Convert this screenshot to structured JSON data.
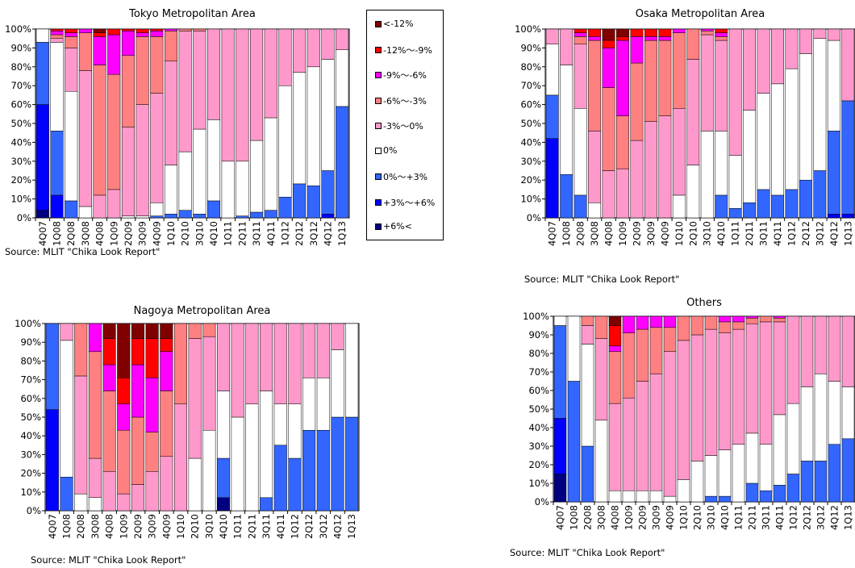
{
  "colors": {
    "lt_m12": "#800000",
    "m12_m9": "#ff0000",
    "m9_m6": "#ff00ff",
    "m6_m3": "#ff8080",
    "m3_0": "#ff99cc",
    "zero": "#ffffff",
    "p0_p3": "#3366ff",
    "p3_p6": "#0000ff",
    "gt_p6": "#000080"
  },
  "legend": [
    {
      "key": "lt_m12",
      "label": "<-12%"
    },
    {
      "key": "m12_m9",
      "label": "-12%〜-9%"
    },
    {
      "key": "m9_m6",
      "label": "-9%〜-6%"
    },
    {
      "key": "m6_m3",
      "label": "-6%〜-3%"
    },
    {
      "key": "m3_0",
      "label": "-3%〜0%"
    },
    {
      "key": "zero",
      "label": "0%"
    },
    {
      "key": "p0_p3",
      "label": "0%〜+3%"
    },
    {
      "key": "p3_p6",
      "label": "+3%〜+6%"
    },
    {
      "key": "gt_p6",
      "label": "+6%<"
    }
  ],
  "source_text": "Source: MLIT \"Chika Look Report\"",
  "chart_data": [
    {
      "type": "bar",
      "stacked": "percent",
      "title": "Tokyo Metropolitan Area",
      "categories": [
        "4Q07",
        "1Q08",
        "2Q08",
        "3Q08",
        "4Q08",
        "1Q09",
        "2Q09",
        "3Q09",
        "4Q09",
        "1Q10",
        "2Q10",
        "3Q10",
        "4Q10",
        "1Q11",
        "2Q11",
        "3Q11",
        "4Q11",
        "1Q12",
        "2Q12",
        "3Q12",
        "4Q12",
        "1Q13"
      ],
      "yticks": [
        "0%",
        "10%",
        "20%",
        "30%",
        "40%",
        "50%",
        "60%",
        "70%",
        "80%",
        "90%",
        "100%"
      ],
      "ylim": [
        0,
        100
      ],
      "grid": false,
      "series_order": [
        "gt_p6",
        "p3_p6",
        "p0_p3",
        "zero",
        "m3_0",
        "m6_m3",
        "m9_m6",
        "m12_m9",
        "lt_m12"
      ],
      "values": [
        [
          4,
          56,
          33,
          7,
          0,
          0,
          0,
          0,
          0
        ],
        [
          0,
          12,
          34,
          47,
          2,
          2,
          2,
          1,
          0
        ],
        [
          0,
          0,
          9,
          58,
          23,
          6,
          2,
          2,
          0
        ],
        [
          0,
          0,
          0,
          6,
          72,
          20,
          2,
          0,
          0
        ],
        [
          0,
          0,
          0,
          0,
          12,
          69,
          15,
          2,
          2
        ],
        [
          0,
          0,
          0,
          0,
          15,
          61,
          21,
          3,
          0
        ],
        [
          0,
          0,
          0,
          1,
          47,
          38,
          13,
          1,
          0
        ],
        [
          0,
          0,
          0,
          1,
          59,
          36,
          2,
          2,
          0
        ],
        [
          0,
          0,
          1,
          7,
          58,
          30,
          3,
          1,
          0
        ],
        [
          0,
          0,
          2,
          26,
          55,
          16,
          1,
          0,
          0
        ],
        [
          0,
          0,
          4,
          31,
          64,
          1,
          0,
          0,
          0
        ],
        [
          0,
          0,
          2,
          45,
          52,
          1,
          0,
          0,
          0
        ],
        [
          0,
          0,
          9,
          43,
          48,
          0,
          0,
          0,
          0
        ],
        [
          0,
          0,
          0,
          30,
          70,
          0,
          0,
          0,
          0
        ],
        [
          0,
          0,
          1,
          29,
          70,
          0,
          0,
          0,
          0
        ],
        [
          0,
          0,
          3,
          38,
          59,
          0,
          0,
          0,
          0
        ],
        [
          0,
          0,
          4,
          49,
          47,
          0,
          0,
          0,
          0
        ],
        [
          0,
          0,
          11,
          59,
          30,
          0,
          0,
          0,
          0
        ],
        [
          0,
          0,
          18,
          59,
          23,
          0,
          0,
          0,
          0
        ],
        [
          0,
          0,
          17,
          63,
          20,
          0,
          0,
          0,
          0
        ],
        [
          0,
          2,
          23,
          59,
          16,
          0,
          0,
          0,
          0
        ],
        [
          0,
          0,
          59,
          30,
          11,
          0,
          0,
          0,
          0
        ]
      ]
    },
    {
      "type": "bar",
      "stacked": "percent",
      "title": "Osaka Metropolitan Area",
      "categories": [
        "4Q07",
        "1Q08",
        "2Q08",
        "3Q08",
        "4Q08",
        "1Q09",
        "2Q09",
        "3Q09",
        "4Q09",
        "1Q10",
        "2Q10",
        "3Q10",
        "4Q10",
        "1Q11",
        "2Q11",
        "3Q11",
        "4Q11",
        "1Q12",
        "2Q12",
        "3Q12",
        "4Q12",
        "1Q13"
      ],
      "yticks": [
        "0%",
        "10%",
        "20%",
        "30%",
        "40%",
        "50%",
        "60%",
        "70%",
        "80%",
        "90%",
        "100%"
      ],
      "ylim": [
        0,
        100
      ],
      "grid": false,
      "series_order": [
        "gt_p6",
        "p3_p6",
        "p0_p3",
        "zero",
        "m3_0",
        "m6_m3",
        "m9_m6",
        "m12_m9",
        "lt_m12"
      ],
      "values": [
        [
          0,
          42,
          23,
          27,
          8,
          0,
          0,
          0,
          0
        ],
        [
          0,
          0,
          23,
          58,
          19,
          0,
          0,
          0,
          0
        ],
        [
          0,
          0,
          12,
          46,
          34,
          4,
          2,
          2,
          0
        ],
        [
          0,
          0,
          0,
          8,
          38,
          48,
          2,
          4,
          0
        ],
        [
          0,
          0,
          0,
          0,
          25,
          44,
          21,
          4,
          6
        ],
        [
          0,
          0,
          0,
          0,
          26,
          28,
          40,
          2,
          4
        ],
        [
          0,
          0,
          0,
          0,
          41,
          41,
          14,
          4,
          0
        ],
        [
          0,
          0,
          0,
          0,
          51,
          43,
          2,
          4,
          0
        ],
        [
          0,
          0,
          0,
          0,
          54,
          40,
          2,
          4,
          0
        ],
        [
          0,
          0,
          0,
          12,
          46,
          40,
          2,
          0,
          0
        ],
        [
          0,
          0,
          0,
          28,
          56,
          16,
          0,
          0,
          0
        ],
        [
          0,
          0,
          0,
          46,
          51,
          2,
          1,
          0,
          0
        ],
        [
          0,
          0,
          12,
          34,
          48,
          2,
          2,
          2,
          0
        ],
        [
          0,
          0,
          5,
          28,
          67,
          0,
          0,
          0,
          0
        ],
        [
          0,
          0,
          8,
          49,
          43,
          0,
          0,
          0,
          0
        ],
        [
          0,
          0,
          15,
          51,
          34,
          0,
          0,
          0,
          0
        ],
        [
          0,
          0,
          12,
          59,
          29,
          0,
          0,
          0,
          0
        ],
        [
          0,
          0,
          15,
          64,
          21,
          0,
          0,
          0,
          0
        ],
        [
          0,
          0,
          20,
          67,
          13,
          0,
          0,
          0,
          0
        ],
        [
          0,
          0,
          25,
          70,
          5,
          0,
          0,
          0,
          0
        ],
        [
          0,
          2,
          44,
          48,
          6,
          0,
          0,
          0,
          0
        ],
        [
          0,
          2,
          60,
          0,
          38,
          0,
          0,
          0,
          0
        ]
      ]
    },
    {
      "type": "bar",
      "stacked": "percent",
      "title": "Nagoya Metropolitan Area",
      "categories": [
        "4Q07",
        "1Q08",
        "2Q08",
        "3Q08",
        "4Q08",
        "1Q09",
        "2Q09",
        "3Q09",
        "4Q09",
        "1Q10",
        "2Q10",
        "3Q10",
        "4Q10",
        "1Q11",
        "2Q11",
        "3Q11",
        "4Q11",
        "1Q12",
        "2Q12",
        "3Q12",
        "4Q12",
        "1Q13"
      ],
      "yticks": [
        "0%",
        "10%",
        "20%",
        "30%",
        "40%",
        "50%",
        "60%",
        "70%",
        "80%",
        "90%",
        "100%"
      ],
      "ylim": [
        0,
        100
      ],
      "grid": false,
      "series_order": [
        "gt_p6",
        "p3_p6",
        "p0_p3",
        "zero",
        "m3_0",
        "m6_m3",
        "m9_m6",
        "m12_m9",
        "lt_m12"
      ],
      "values": [
        [
          0,
          54,
          46,
          0,
          0,
          0,
          0,
          0,
          0
        ],
        [
          0,
          0,
          18,
          73,
          9,
          0,
          0,
          0,
          0
        ],
        [
          0,
          0,
          0,
          9,
          63,
          28,
          0,
          0,
          0
        ],
        [
          0,
          0,
          0,
          7,
          21,
          57,
          15,
          0,
          0
        ],
        [
          0,
          0,
          0,
          0,
          21,
          43,
          14,
          14,
          8
        ],
        [
          0,
          0,
          0,
          0,
          9,
          34,
          14,
          14,
          29
        ],
        [
          0,
          0,
          0,
          0,
          14,
          36,
          28,
          14,
          8
        ],
        [
          0,
          0,
          0,
          0,
          21,
          21,
          29,
          21,
          8
        ],
        [
          0,
          0,
          0,
          0,
          29,
          35,
          21,
          7,
          8
        ],
        [
          0,
          0,
          0,
          0,
          57,
          43,
          0,
          0,
          0
        ],
        [
          0,
          0,
          0,
          28,
          64,
          8,
          0,
          0,
          0
        ],
        [
          0,
          0,
          0,
          43,
          50,
          7,
          0,
          0,
          0
        ],
        [
          7,
          0,
          21,
          36,
          36,
          0,
          0,
          0,
          0
        ],
        [
          0,
          0,
          0,
          50,
          50,
          0,
          0,
          0,
          0
        ],
        [
          0,
          0,
          0,
          57,
          43,
          0,
          0,
          0,
          0
        ],
        [
          0,
          0,
          7,
          57,
          36,
          0,
          0,
          0,
          0
        ],
        [
          0,
          0,
          35,
          22,
          43,
          0,
          0,
          0,
          0
        ],
        [
          0,
          0,
          28,
          29,
          43,
          0,
          0,
          0,
          0
        ],
        [
          0,
          0,
          43,
          28,
          29,
          0,
          0,
          0,
          0
        ],
        [
          0,
          0,
          43,
          28,
          29,
          0,
          0,
          0,
          0
        ],
        [
          0,
          0,
          50,
          36,
          14,
          0,
          0,
          0,
          0
        ],
        [
          0,
          0,
          50,
          50,
          0,
          0,
          0,
          0,
          0
        ]
      ]
    },
    {
      "type": "bar",
      "stacked": "percent",
      "title": "Others",
      "categories": [
        "4Q07",
        "1Q08",
        "2Q08",
        "3Q08",
        "4Q08",
        "1Q09",
        "2Q09",
        "3Q09",
        "4Q09",
        "1Q10",
        "2Q10",
        "3Q10",
        "4Q10",
        "1Q11",
        "2Q11",
        "3Q11",
        "4Q11",
        "1Q12",
        "2Q12",
        "3Q12",
        "4Q12",
        "1Q13"
      ],
      "yticks": [
        "0%",
        "10%",
        "20%",
        "30%",
        "40%",
        "50%",
        "60%",
        "70%",
        "80%",
        "90%",
        "100%"
      ],
      "ylim": [
        0,
        100
      ],
      "grid": false,
      "series_order": [
        "gt_p6",
        "p3_p6",
        "p0_p3",
        "zero",
        "m3_0",
        "m6_m3",
        "m9_m6",
        "m12_m9",
        "lt_m12"
      ],
      "values": [
        [
          15,
          30,
          50,
          5,
          0,
          0,
          0,
          0,
          0
        ],
        [
          0,
          0,
          65,
          35,
          0,
          0,
          0,
          0,
          0
        ],
        [
          0,
          0,
          30,
          55,
          10,
          5,
          0,
          0,
          0
        ],
        [
          0,
          0,
          0,
          44,
          44,
          12,
          0,
          0,
          0
        ],
        [
          0,
          0,
          0,
          6,
          47,
          28,
          3,
          11,
          5
        ],
        [
          0,
          0,
          0,
          6,
          50,
          35,
          9,
          0,
          0
        ],
        [
          0,
          0,
          0,
          6,
          59,
          28,
          7,
          0,
          0
        ],
        [
          0,
          0,
          0,
          6,
          63,
          25,
          6,
          0,
          0
        ],
        [
          0,
          0,
          0,
          3,
          78,
          13,
          6,
          0,
          0
        ],
        [
          0,
          0,
          0,
          12,
          75,
          13,
          0,
          0,
          0
        ],
        [
          0,
          0,
          0,
          22,
          68,
          10,
          0,
          0,
          0
        ],
        [
          0,
          0,
          3,
          22,
          68,
          7,
          0,
          0,
          0
        ],
        [
          0,
          0,
          3,
          25,
          63,
          6,
          3,
          0,
          0
        ],
        [
          0,
          0,
          0,
          31,
          62,
          4,
          3,
          0,
          0
        ],
        [
          0,
          0,
          10,
          27,
          59,
          3,
          1,
          0,
          0
        ],
        [
          0,
          0,
          6,
          25,
          66,
          3,
          0,
          0,
          0
        ],
        [
          0,
          0,
          9,
          38,
          50,
          2,
          1,
          0,
          0
        ],
        [
          0,
          0,
          15,
          38,
          47,
          0,
          0,
          0,
          0
        ],
        [
          0,
          0,
          22,
          40,
          38,
          0,
          0,
          0,
          0
        ],
        [
          0,
          0,
          22,
          47,
          31,
          0,
          0,
          0,
          0
        ],
        [
          0,
          0,
          31,
          34,
          35,
          0,
          0,
          0,
          0
        ],
        [
          0,
          0,
          34,
          28,
          38,
          0,
          0,
          0,
          0
        ]
      ]
    }
  ]
}
